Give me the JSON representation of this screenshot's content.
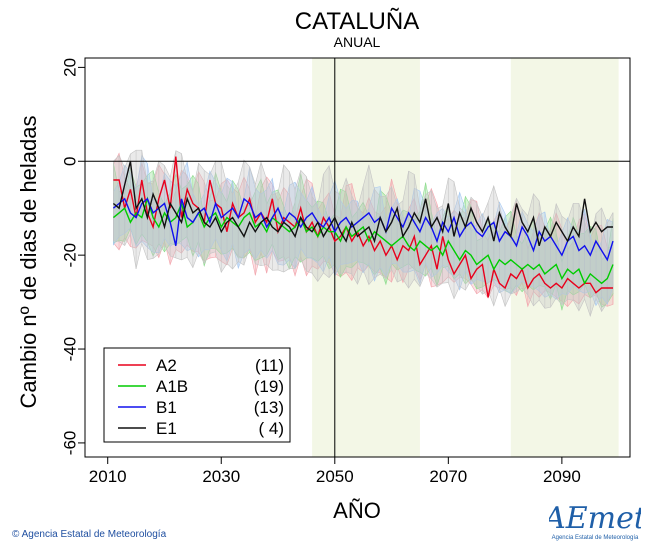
{
  "chart_data": {
    "type": "line",
    "title": "CATALUÑA",
    "subtitle": "ANUAL",
    "xlabel": "AÑO",
    "ylabel": "Cambio nº de dias de heladas",
    "xlim": [
      2006,
      2102
    ],
    "ylim": [
      -63,
      22
    ],
    "xticks": [
      2010,
      2030,
      2050,
      2070,
      2090
    ],
    "yticks": [
      20,
      0,
      -20,
      -40,
      -60
    ],
    "reference_lines": {
      "x": 2050,
      "y": 0
    },
    "shaded_periods": [
      [
        2046,
        2065
      ],
      [
        2081,
        2100
      ]
    ],
    "legend_position": "bottom-left",
    "x": [
      2011,
      2012,
      2013,
      2014,
      2015,
      2016,
      2017,
      2018,
      2019,
      2020,
      2021,
      2022,
      2023,
      2024,
      2025,
      2026,
      2027,
      2028,
      2029,
      2030,
      2031,
      2032,
      2033,
      2034,
      2035,
      2036,
      2037,
      2038,
      2039,
      2040,
      2041,
      2042,
      2043,
      2044,
      2045,
      2046,
      2047,
      2048,
      2049,
      2050,
      2051,
      2052,
      2053,
      2054,
      2055,
      2056,
      2057,
      2058,
      2059,
      2060,
      2061,
      2062,
      2063,
      2064,
      2065,
      2066,
      2067,
      2068,
      2069,
      2070,
      2071,
      2072,
      2073,
      2074,
      2075,
      2076,
      2077,
      2078,
      2079,
      2080,
      2081,
      2082,
      2083,
      2084,
      2085,
      2086,
      2087,
      2088,
      2089,
      2090,
      2091,
      2092,
      2093,
      2094,
      2095,
      2096,
      2097,
      2098,
      2099
    ],
    "series": [
      {
        "name": "A2",
        "count": "(11)",
        "color": "#e8001c",
        "values": [
          -4,
          -4,
          -10,
          -6,
          -12,
          -4,
          -11,
          -14,
          -8,
          -4,
          -10,
          1,
          -12,
          -6,
          -9,
          -10,
          -13,
          -4,
          -9,
          -10,
          -15,
          -9,
          -12,
          -11,
          -8,
          -13,
          -11,
          -13,
          -8,
          -15,
          -12,
          -13,
          -14,
          -10,
          -15,
          -13,
          -16,
          -12,
          -14,
          -17,
          -16,
          -14,
          -17,
          -15,
          -18,
          -16,
          -19,
          -17,
          -20,
          -18,
          -21,
          -18,
          -19,
          -16,
          -22,
          -20,
          -18,
          -23,
          -16,
          -21,
          -24,
          -22,
          -20,
          -25,
          -23,
          -22,
          -29,
          -23,
          -26,
          -27,
          -24,
          -25,
          -23,
          -27,
          -25,
          -24,
          -26,
          -27,
          -26,
          -27,
          -25,
          -26,
          -27,
          -26,
          -26,
          -28,
          -27,
          -27,
          -27
        ]
      },
      {
        "name": "A1B",
        "count": "(19)",
        "color": "#00cc00",
        "values": [
          -12,
          -11,
          -10,
          -13,
          -11,
          -12,
          -8,
          -12,
          -14,
          -11,
          -13,
          -12,
          -9,
          -14,
          -13,
          -11,
          -14,
          -12,
          -11,
          -14,
          -12,
          -13,
          -14,
          -12,
          -11,
          -14,
          -13,
          -15,
          -12,
          -13,
          -14,
          -15,
          -14,
          -12,
          -15,
          -14,
          -16,
          -14,
          -15,
          -15,
          -17,
          -14,
          -16,
          -15,
          -14,
          -17,
          -15,
          -16,
          -17,
          -18,
          -17,
          -16,
          -18,
          -19,
          -17,
          -18,
          -19,
          -18,
          -20,
          -17,
          -19,
          -21,
          -19,
          -20,
          -22,
          -21,
          -20,
          -23,
          -21,
          -22,
          -21,
          -22,
          -23,
          -22,
          -23,
          -22,
          -24,
          -23,
          -22,
          -25,
          -23,
          -24,
          -23,
          -26,
          -24,
          -25,
          -26,
          -25,
          -22
        ]
      },
      {
        "name": "B1",
        "count": "(13)",
        "color": "#1010ee",
        "values": [
          -10,
          -9,
          -8,
          -11,
          -12,
          -9,
          -8,
          -11,
          -10,
          -9,
          -13,
          -18,
          -8,
          -12,
          -13,
          -11,
          -10,
          -13,
          -9,
          -12,
          -11,
          -10,
          -12,
          -8,
          -9,
          -12,
          -11,
          -14,
          -12,
          -10,
          -13,
          -11,
          -12,
          -14,
          -12,
          -11,
          -13,
          -14,
          -12,
          -15,
          -13,
          -12,
          -14,
          -13,
          -12,
          -11,
          -13,
          -12,
          -15,
          -10,
          -12,
          -14,
          -11,
          -13,
          -15,
          -12,
          -14,
          -17,
          -13,
          -15,
          -12,
          -16,
          -14,
          -13,
          -15,
          -16,
          -14,
          -13,
          -17,
          -15,
          -16,
          -18,
          -14,
          -16,
          -19,
          -15,
          -17,
          -16,
          -18,
          -20,
          -17,
          -16,
          -19,
          -18,
          -20,
          -17,
          -19,
          -21,
          -17
        ]
      },
      {
        "name": "E1",
        "count": "( 4)",
        "color": "#111111",
        "values": [
          -9,
          -10,
          -5,
          0,
          -10,
          -8,
          -12,
          -7,
          -10,
          -14,
          -9,
          -11,
          -13,
          -8,
          -11,
          -10,
          -13,
          -14,
          -12,
          -15,
          -13,
          -12,
          -14,
          -16,
          -13,
          -15,
          -13,
          -12,
          -14,
          -15,
          -13,
          -14,
          -16,
          -12,
          -14,
          -15,
          -13,
          -16,
          -14,
          -12,
          -15,
          -17,
          -13,
          -16,
          -15,
          -14,
          -17,
          -12,
          -15,
          -13,
          -10,
          -16,
          -14,
          -11,
          -13,
          -8,
          -14,
          -12,
          -15,
          -9,
          -16,
          -11,
          -14,
          -10,
          -13,
          -15,
          -12,
          -17,
          -11,
          -14,
          -16,
          -9,
          -13,
          -15,
          -12,
          -18,
          -14,
          -16,
          -13,
          -15,
          -17,
          -14,
          -16,
          -8,
          -15,
          -13,
          -15,
          -14,
          -14
        ]
      }
    ],
    "envelopes": [
      {
        "color": "#f2a6ae",
        "lower_offset": -7,
        "upper_offset": 6
      },
      {
        "color": "#8fdc8f",
        "lower_offset": -6,
        "upper_offset": 5
      },
      {
        "color": "#a9c9f0",
        "lower_offset": -6,
        "upper_offset": 6
      },
      {
        "color": "#c4c4c4",
        "lower_offset": -8,
        "upper_offset": 9
      }
    ]
  },
  "footer": "© Agencia Estatal de Meteorología",
  "logo": {
    "text": "AEmet",
    "subtext": "Agencia Estatal de Meteorología"
  }
}
